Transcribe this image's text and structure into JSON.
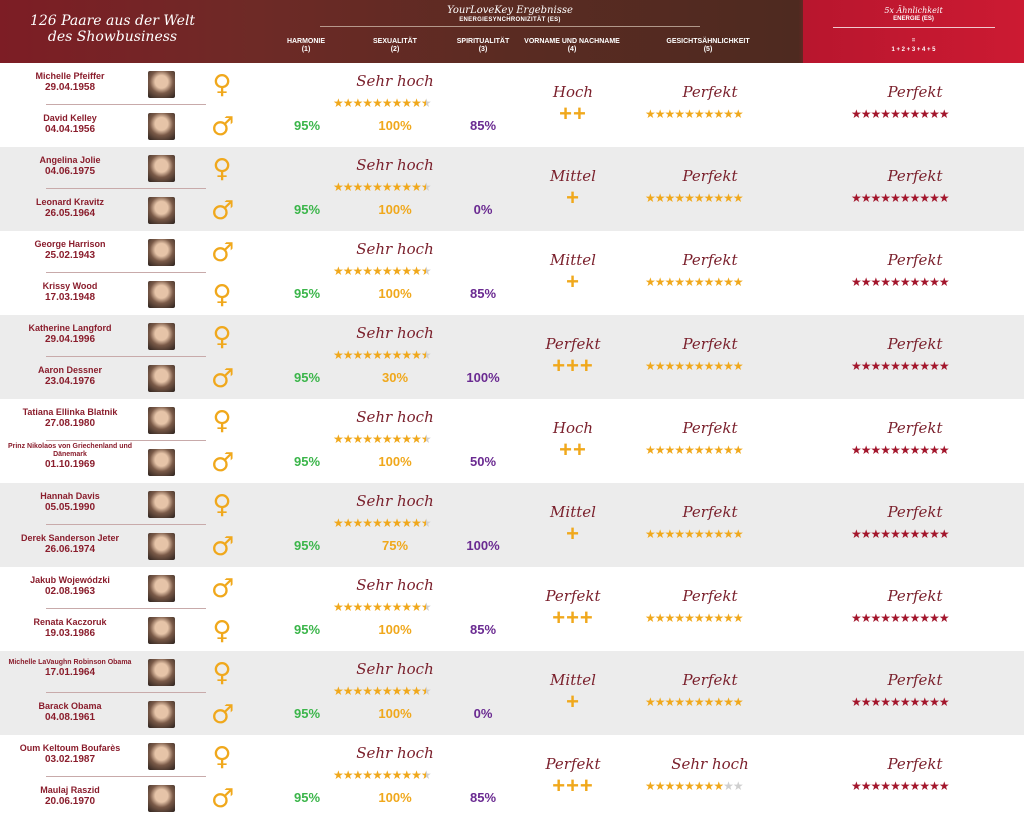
{
  "header": {
    "left_title": "126 Paare aus der Welt des Showbusiness",
    "ylk_title": "YourLoveKey Ergebnisse",
    "ylk_subtitle": "ENERGIESYNCHRONIZITÄT (ES)",
    "columns": [
      {
        "label": "HARMONIE",
        "num": "(1)"
      },
      {
        "label": "SEXUALITÄT",
        "num": "(2)"
      },
      {
        "label": "SPIRITUALITÄT",
        "num": "(3)"
      },
      {
        "label": "VORNAME UND NACHNAME",
        "num": "(4)"
      },
      {
        "label": "GESICHTSÄHNLICHKEIT",
        "num": "(5)"
      }
    ],
    "right_title": "5x Ähnlichkeit",
    "right_subtitle": "ENERGIE (ES)",
    "right_eq": "=",
    "right_formula": "1 + 2 + 3 + 4 + 5"
  },
  "colors": {
    "green": "#3bb54a",
    "gold": "#f0a81c",
    "purple": "#6a2a91",
    "maroon": "#7a1f2b",
    "star_red": "#a3162c",
    "star_grey": "#cfcfcf"
  },
  "pairs": [
    {
      "p1": {
        "name": "Michelle Pfeiffer",
        "date": "29.04.1958",
        "gender": "♀"
      },
      "p2": {
        "name": "David Kelley",
        "date": "04.04.1956",
        "gender": "♂"
      },
      "sex_label": "Sehr hoch",
      "sex_stars": 9.5,
      "harmonie": "95%",
      "sexualitaet": "100%",
      "spiritualitaet": "85%",
      "name_label": "Hoch",
      "name_plus": "++",
      "face_label": "Perfekt",
      "face_stars": 10,
      "energy_label": "Perfekt",
      "energy_stars": 10
    },
    {
      "p1": {
        "name": "Angelina Jolie",
        "date": "04.06.1975",
        "gender": "♀"
      },
      "p2": {
        "name": "Leonard Kravitz",
        "date": "26.05.1964",
        "gender": "♂"
      },
      "sex_label": "Sehr hoch",
      "sex_stars": 9.5,
      "harmonie": "95%",
      "sexualitaet": "100%",
      "spiritualitaet": "0%",
      "name_label": "Mittel",
      "name_plus": "+",
      "face_label": "Perfekt",
      "face_stars": 10,
      "energy_label": "Perfekt",
      "energy_stars": 10
    },
    {
      "p1": {
        "name": "George Harrison",
        "date": "25.02.1943",
        "gender": "♂"
      },
      "p2": {
        "name": "Krissy Wood",
        "date": "17.03.1948",
        "gender": "♀"
      },
      "sex_label": "Sehr hoch",
      "sex_stars": 9.5,
      "harmonie": "95%",
      "sexualitaet": "100%",
      "spiritualitaet": "85%",
      "name_label": "Mittel",
      "name_plus": "+",
      "face_label": "Perfekt",
      "face_stars": 10,
      "energy_label": "Perfekt",
      "energy_stars": 10
    },
    {
      "p1": {
        "name": "Katherine Langford",
        "date": "29.04.1996",
        "gender": "♀"
      },
      "p2": {
        "name": "Aaron Dessner",
        "date": "23.04.1976",
        "gender": "♂"
      },
      "sex_label": "Sehr hoch",
      "sex_stars": 9.5,
      "harmonie": "95%",
      "sexualitaet": "30%",
      "spiritualitaet": "100%",
      "name_label": "Perfekt",
      "name_plus": "+++",
      "face_label": "Perfekt",
      "face_stars": 10,
      "energy_label": "Perfekt",
      "energy_stars": 10
    },
    {
      "p1": {
        "name": "Tatiana Ellinka Blatnik",
        "date": "27.08.1980",
        "gender": "♀"
      },
      "p2": {
        "name": "Prinz Nikolaos von Griechenland und Dänemark",
        "date": "01.10.1969",
        "gender": "♂"
      },
      "sex_label": "Sehr hoch",
      "sex_stars": 9.5,
      "harmonie": "95%",
      "sexualitaet": "100%",
      "spiritualitaet": "50%",
      "name_label": "Hoch",
      "name_plus": "++",
      "face_label": "Perfekt",
      "face_stars": 10,
      "energy_label": "Perfekt",
      "energy_stars": 10
    },
    {
      "p1": {
        "name": "Hannah Davis",
        "date": "05.05.1990",
        "gender": "♀"
      },
      "p2": {
        "name": "Derek Sanderson Jeter",
        "date": "26.06.1974",
        "gender": "♂"
      },
      "sex_label": "Sehr hoch",
      "sex_stars": 9.5,
      "harmonie": "95%",
      "sexualitaet": "75%",
      "spiritualitaet": "100%",
      "name_label": "Mittel",
      "name_plus": "+",
      "face_label": "Perfekt",
      "face_stars": 10,
      "energy_label": "Perfekt",
      "energy_stars": 10
    },
    {
      "p1": {
        "name": "Jakub Wojewódzki",
        "date": "02.08.1963",
        "gender": "♂"
      },
      "p2": {
        "name": "Renata Kaczoruk",
        "date": "19.03.1986",
        "gender": "♀"
      },
      "sex_label": "Sehr hoch",
      "sex_stars": 9.5,
      "harmonie": "95%",
      "sexualitaet": "100%",
      "spiritualitaet": "85%",
      "name_label": "Perfekt",
      "name_plus": "+++",
      "face_label": "Perfekt",
      "face_stars": 10,
      "energy_label": "Perfekt",
      "energy_stars": 10
    },
    {
      "p1": {
        "name": "Michelle LaVaughn Robinson Obama",
        "date": "17.01.1964",
        "gender": "♀"
      },
      "p2": {
        "name": "Barack Obama",
        "date": "04.08.1961",
        "gender": "♂"
      },
      "sex_label": "Sehr hoch",
      "sex_stars": 9.5,
      "harmonie": "95%",
      "sexualitaet": "100%",
      "spiritualitaet": "0%",
      "name_label": "Mittel",
      "name_plus": "+",
      "face_label": "Perfekt",
      "face_stars": 10,
      "energy_label": "Perfekt",
      "energy_stars": 10
    },
    {
      "p1": {
        "name": "Oum Keltoum Boufarès",
        "date": "03.02.1987",
        "gender": "♀"
      },
      "p2": {
        "name": "Maulaj Raszid",
        "date": "20.06.1970",
        "gender": "♂"
      },
      "sex_label": "Sehr hoch",
      "sex_stars": 9.5,
      "harmonie": "95%",
      "sexualitaet": "100%",
      "spiritualitaet": "85%",
      "name_label": "Perfekt",
      "name_plus": "+++",
      "face_label": "Sehr hoch",
      "face_stars": 8,
      "energy_label": "Perfekt",
      "energy_stars": 10
    }
  ]
}
